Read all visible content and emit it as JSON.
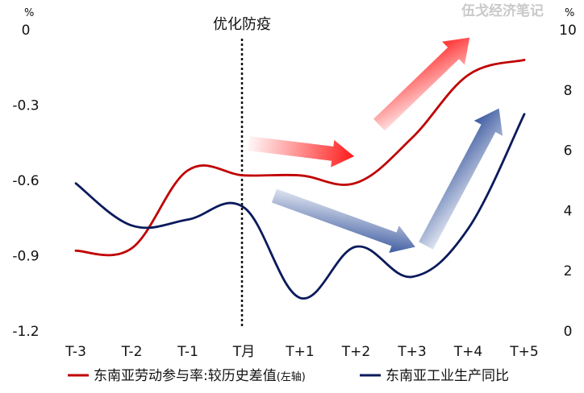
{
  "watermark": "伍戈经济笔记",
  "chart_data": {
    "type": "line",
    "categories": [
      "T-3",
      "T-2",
      "T-1",
      "T月",
      "T+1",
      "T+2",
      "T+3",
      "T+4",
      "T+5"
    ],
    "left_axis": {
      "unit": "%",
      "ylim": [
        -1.2,
        0
      ],
      "ticks": [
        "0",
        "-0.3",
        "-0.6",
        "-0.9",
        "-1.2"
      ]
    },
    "right_axis": {
      "unit": "%",
      "ylim": [
        0,
        10
      ],
      "ticks": [
        "10",
        "8",
        "6",
        "4",
        "2",
        "0"
      ]
    },
    "annotation": {
      "label": "优化防疫",
      "x": "T月"
    },
    "series": [
      {
        "name": "东南亚劳动参与率:较历史差值",
        "name_suffix": "(左轴)",
        "axis": "left",
        "color": "#c00000",
        "values": [
          -0.88,
          -0.87,
          -0.56,
          -0.58,
          -0.58,
          -0.61,
          -0.43,
          -0.18,
          -0.12
        ]
      },
      {
        "name": "东南亚工业生产同比",
        "axis": "right",
        "color": "#0b1a5c",
        "values": [
          4.9,
          3.5,
          3.7,
          4.1,
          1.1,
          2.8,
          1.8,
          3.4,
          7.2
        ]
      }
    ],
    "arrows": [
      {
        "color": "red",
        "from": "T+0.1",
        "to": "T+2",
        "direction": "flat"
      },
      {
        "color": "red",
        "from": "T+2.2",
        "to": "T+4",
        "direction": "up"
      },
      {
        "color": "blue",
        "from": "T+0.5",
        "to": "T+3",
        "direction": "down"
      },
      {
        "color": "blue",
        "from": "T+3.2",
        "to": "T+4.5",
        "direction": "up"
      }
    ]
  }
}
